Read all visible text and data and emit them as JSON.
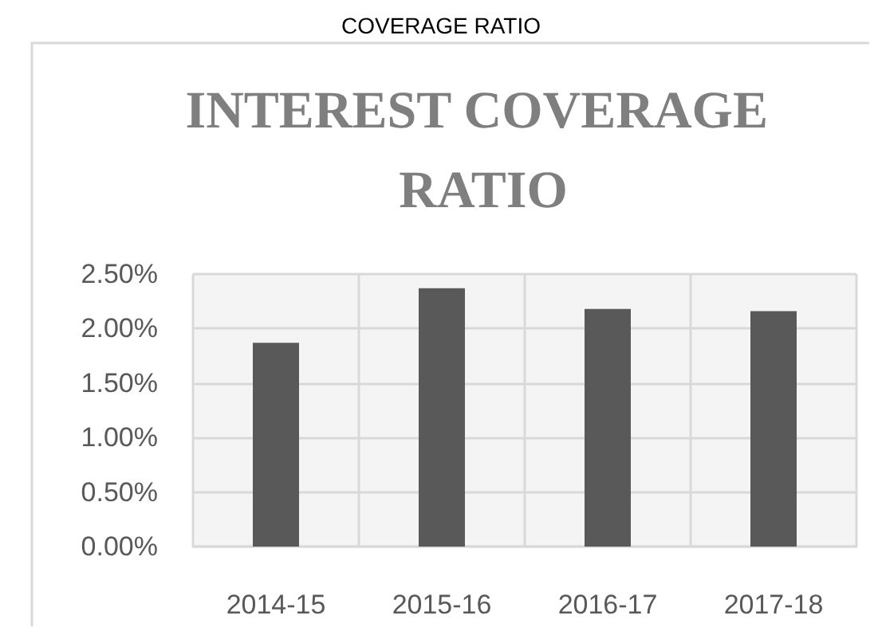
{
  "chart_data": {
    "type": "bar",
    "title": "INTEREST COVERAGE RATIO",
    "annotations": [
      "COVERAGE RATIO"
    ],
    "categories": [
      "2014-15",
      "2015-16",
      "2016-17",
      "2017-18"
    ],
    "values": [
      1.87,
      2.37,
      2.18,
      2.16
    ],
    "color": "#595959",
    "ylim": [
      0,
      2.5
    ],
    "yticks": [
      {
        "value": 0,
        "label": "0.00%"
      },
      {
        "value": 0.5,
        "label": "0.50%"
      },
      {
        "value": 1,
        "label": "1.00%"
      },
      {
        "value": 1.5,
        "label": "1.50%"
      },
      {
        "value": 2,
        "label": "2.00%"
      },
      {
        "value": 2.5,
        "label": "2.50%"
      }
    ],
    "grid": true
  }
}
